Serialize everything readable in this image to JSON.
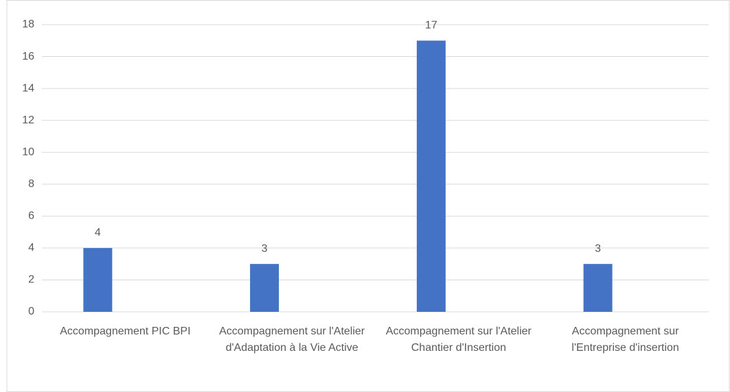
{
  "chart_data": {
    "type": "bar",
    "categories": [
      "Accompagnement PIC BPI",
      "Accompagnement sur l'Atelier d'Adaptation à la Vie Active",
      "Accompagnement sur l'Atelier Chantier d'Insertion",
      "Accompagnement sur l'Entreprise d'insertion"
    ],
    "values": [
      4,
      3,
      17,
      3
    ],
    "color": "#4472c4",
    "ylim": [
      0,
      18
    ],
    "yticks": [
      0,
      2,
      4,
      6,
      8,
      10,
      12,
      14,
      16,
      18
    ],
    "grid": true,
    "data_labels": true
  }
}
